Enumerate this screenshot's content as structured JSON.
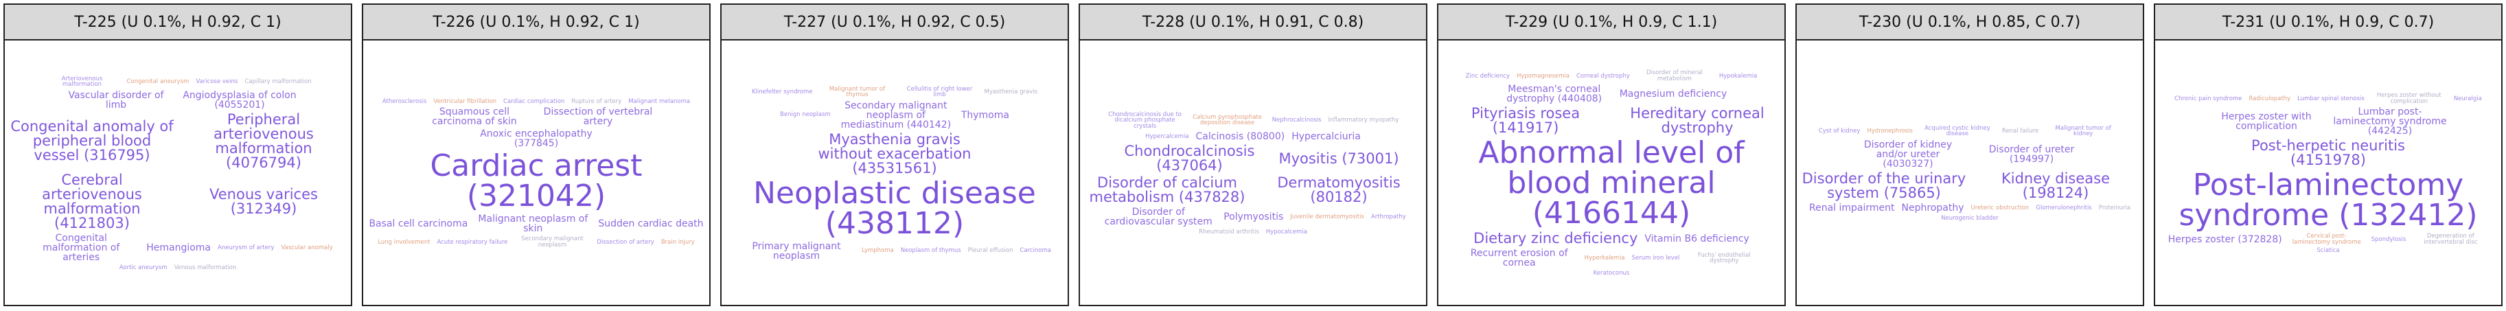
{
  "panels": [
    {
      "title": "T-225 (U 0.1%, H 0.92, C 1)",
      "words": {
        "huge": [],
        "large": [
          "Congenital anomaly of peripheral blood vessel (316795)",
          "Peripheral arteriovenous malformation (4076794)",
          "Cerebral arteriovenous malformation (4121803)",
          "Venous varices (312349)"
        ],
        "medium": [
          "Vascular disorder of limb",
          "Angiodysplasia of colon (4055201)",
          "Congenital malformation of arteries",
          "Hemangioma"
        ],
        "small": [
          "Arteriovenous malformation",
          "Congenital aneurysm",
          "Varicose veins",
          "Capillary malformation",
          "Aneurysm of artery",
          "Vascular anomaly",
          "Aortic aneurysm",
          "Venous malformation"
        ]
      }
    },
    {
      "title": "T-226 (U 0.1%, H 0.92, C 1)",
      "words": {
        "huge": [
          "Cardiac arrest (321042)"
        ],
        "large": [],
        "medium": [
          "Squamous cell carcinoma of skin",
          "Dissection of vertebral artery",
          "Anoxic encephalopathy (377845)",
          "Basal cell carcinoma",
          "Malignant neoplasm of skin",
          "Sudden cardiac death"
        ],
        "small": [
          "Atherosclerosis",
          "Ventricular fibrillation",
          "Cardiac complication",
          "Rupture of artery",
          "Malignant melanoma",
          "Lung involvement",
          "Acute respiratory failure",
          "Secondary malignant neoplasm",
          "Dissection of artery",
          "Brain injury"
        ]
      }
    },
    {
      "title": "T-227 (U 0.1%, H 0.92, C 0.5)",
      "words": {
        "huge": [
          "Neoplastic disease (438112)"
        ],
        "large": [
          "Myasthenia gravis without exacerbation (43531561)"
        ],
        "medium": [
          "Secondary malignant neoplasm of mediastinum (440142)",
          "Thymoma",
          "Primary malignant neoplasm"
        ],
        "small": [
          "Klinefelter syndrome",
          "Malignant tumor of thymus",
          "Cellulitis of right lower limb",
          "Myasthenia gravis",
          "Benign neoplasm",
          "Lymphoma",
          "Neoplasm of thymus",
          "Pleural effusion",
          "Carcinoma"
        ]
      }
    },
    {
      "title": "T-228 (U 0.1%, H 0.91, C 0.8)",
      "words": {
        "huge": [],
        "large": [
          "Chondrocalcinosis (437064)",
          "Myositis (73001)",
          "Disorder of calcium metabolism (437828)",
          "Dermatomyositis (80182)"
        ],
        "medium": [
          "Calcinosis (80800)",
          "Hypercalciuria",
          "Disorder of cardiovascular system",
          "Polymyositis"
        ],
        "small": [
          "Chondrocalcinosis due to dicalcium phosphate crystals",
          "Calcium pyrophosphate deposition disease",
          "Nephrocalcinosis",
          "Inflammatory myopathy",
          "Hypercalcemia",
          "Juvenile dermatomyositis",
          "Arthropathy",
          "Rheumatoid arthritis",
          "Hypocalcemia"
        ]
      }
    },
    {
      "title": "T-229 (U 0.1%, H 0.9, C 1.1)",
      "words": {
        "huge": [
          "Abnormal level of blood mineral (4166144)"
        ],
        "large": [
          "Pityriasis rosea (141917)",
          "Hereditary corneal dystrophy",
          "Dietary zinc deficiency"
        ],
        "medium": [
          "Meesman's corneal dystrophy (440408)",
          "Magnesium deficiency",
          "Vitamin B6 deficiency",
          "Recurrent erosion of cornea"
        ],
        "small": [
          "Zinc deficiency",
          "Hypomagnesemia",
          "Corneal dystrophy",
          "Disorder of mineral metabolism",
          "Hypokalemia",
          "Hyperkalemia",
          "Serum iron level",
          "Fuchs' endothelial dystrophy",
          "Keratoconus"
        ]
      }
    },
    {
      "title": "T-230 (U 0.1%, H 0.85, C 0.7)",
      "words": {
        "huge": [],
        "large": [
          "Disorder of the urinary system (75865)",
          "Kidney disease (198124)"
        ],
        "medium": [
          "Disorder of kidney and/or ureter (4030327)",
          "Disorder of ureter (194997)",
          "Renal impairment",
          "Nephropathy"
        ],
        "small": [
          "Cyst of kidney",
          "Hydronephrosis",
          "Acquired cystic kidney disease",
          "Renal failure",
          "Malignant tumor of kidney",
          "Ureteric obstruction",
          "Glomerulonephritis",
          "Proteinuria",
          "Neurogenic bladder"
        ]
      }
    },
    {
      "title": "T-231 (U 0.1%, H 0.9, C 0.7)",
      "words": {
        "huge": [
          "Post-laminectomy syndrome (132412)"
        ],
        "large": [
          "Post-herpetic neuritis (4151978)"
        ],
        "medium": [
          "Herpes zoster with complication",
          "Lumbar post-laminectomy syndrome (442425)",
          "Herpes zoster (372828)"
        ],
        "small": [
          "Chronic pain syndrome",
          "Radiculopathy",
          "Lumbar spinal stenosis",
          "Herpes zoster without complication",
          "Neuralgia",
          "Cervical post-laminectomy syndrome",
          "Spondylosis",
          "Degeneration of intervertebral disc",
          "Sciatica"
        ]
      }
    }
  ]
}
